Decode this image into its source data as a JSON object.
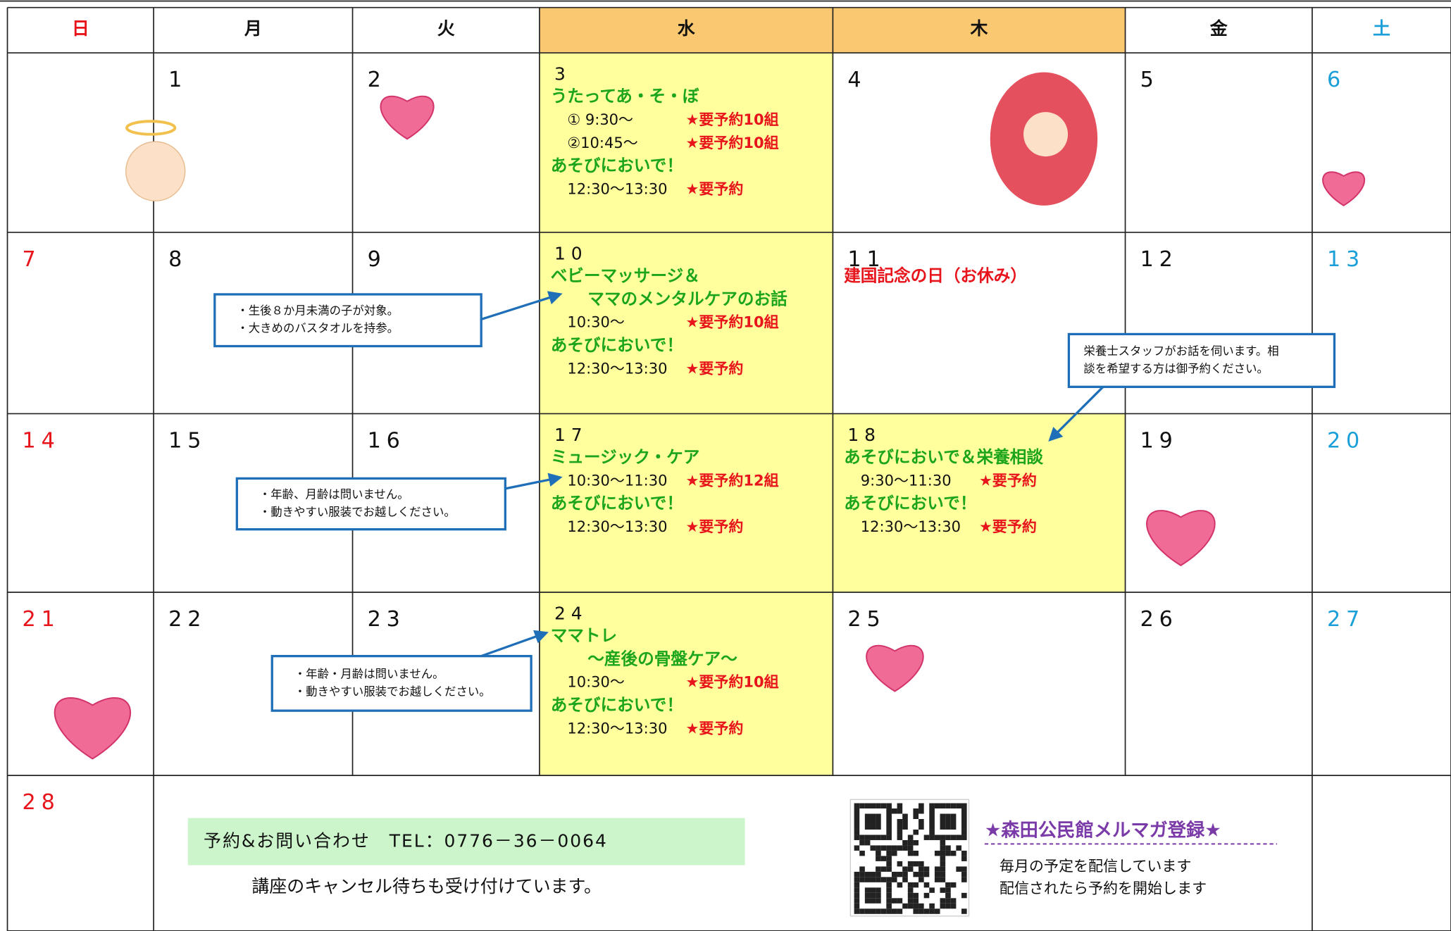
{
  "weekdays": [
    "日",
    "月",
    "火",
    "水",
    "木",
    "金",
    "土"
  ],
  "days": [
    {
      "date": "1"
    },
    {
      "date": "2"
    },
    {
      "date": "3",
      "events": [
        {
          "title": [
            "うたってあ・そ・ぼ"
          ],
          "times": [
            {
              "time": "① 9:30～",
              "note": "★要予約10組"
            },
            {
              "time": "②10:45～",
              "note": "★要予約10組"
            }
          ]
        },
        {
          "title": [
            "あそびにおいで！"
          ],
          "times": [
            {
              "time": "12:30～13:30",
              "note": "★要予約"
            }
          ]
        }
      ]
    },
    {
      "date": "4"
    },
    {
      "date": "5"
    },
    {
      "date": "6"
    },
    {
      "date": "7"
    },
    {
      "date": "8"
    },
    {
      "date": "9"
    },
    {
      "date": "10",
      "events": [
        {
          "title": [
            "ベビーマッサージ＆",
            "ママのメンタルケアのお話"
          ],
          "times": [
            {
              "time": "10:30～",
              "note": "★要予約10組"
            }
          ]
        },
        {
          "title": [
            "あそびにおいで！"
          ],
          "times": [
            {
              "time": "12:30～13:30",
              "note": "★要予約"
            }
          ]
        }
      ]
    },
    {
      "date": "11",
      "holiday": "建国記念の日（お休み）"
    },
    {
      "date": "12"
    },
    {
      "date": "13"
    },
    {
      "date": "14"
    },
    {
      "date": "15"
    },
    {
      "date": "16"
    },
    {
      "date": "17",
      "events": [
        {
          "title": [
            "ミュージック・ケア"
          ],
          "times": [
            {
              "time": "10:30～11:30",
              "note": "★要予約12組"
            }
          ]
        },
        {
          "title": [
            "あそびにおいで！"
          ],
          "times": [
            {
              "time": "12:30～13:30",
              "note": "★要予約"
            }
          ]
        }
      ]
    },
    {
      "date": "18",
      "events": [
        {
          "title": [
            "あそびにおいで＆栄養相談"
          ],
          "times": [
            {
              "time": "9:30～11:30",
              "note": "★要予約"
            }
          ]
        },
        {
          "title": [
            "あそびにおいで！"
          ],
          "times": [
            {
              "time": "12:30～13:30",
              "note": "★要予約"
            }
          ]
        }
      ]
    },
    {
      "date": "19"
    },
    {
      "date": "20"
    },
    {
      "date": "21"
    },
    {
      "date": "22"
    },
    {
      "date": "23"
    },
    {
      "date": "24",
      "events": [
        {
          "title": [
            "ママトレ",
            "～産後の骨盤ケア～"
          ],
          "times": [
            {
              "time": "10:30～",
              "note": "★要予約10組"
            }
          ]
        },
        {
          "title": [
            "あそびにおいで！"
          ],
          "times": [
            {
              "time": "12:30～13:30",
              "note": "★要予約"
            }
          ]
        }
      ]
    },
    {
      "date": "25"
    },
    {
      "date": "26"
    },
    {
      "date": "27"
    },
    {
      "date": "28"
    }
  ],
  "callouts": [
    {
      "lines": [
        "・生後８か月未満の子が対象。",
        "・大きめのバスタオルを持参。"
      ]
    },
    {
      "lines": [
        "栄養士スタッフがお話を伺います。相",
        "談を希望する方は御予約ください。"
      ]
    },
    {
      "lines": [
        "・年齢、月齢は問いません。",
        "・動きやすい服装でお越しください。"
      ]
    },
    {
      "lines": [
        "・年齢・月齢は問いません。",
        "・動きやすい服装でお越しください。"
      ]
    }
  ],
  "footer": {
    "contact": "予約&お問い合わせ　TEL：0776－36－0064",
    "waitlist": "講座のキャンセル待ちも受け付けています。",
    "mail_title": "★森田公民館メルマガ登録★",
    "mail_lines": [
      "毎月の予定を配信しています",
      "配信されたら予約を開始します"
    ]
  }
}
